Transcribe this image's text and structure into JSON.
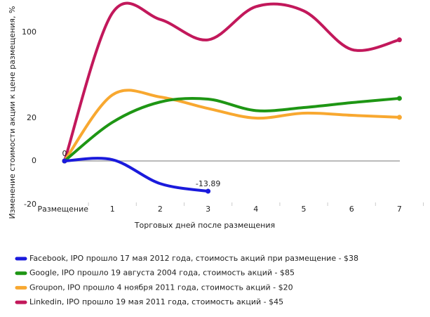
{
  "chart_data": {
    "type": "line",
    "y_label": "Изменение стоимости акции к цене размещения, %",
    "x_label": "Торговых дней после размещения",
    "categories": [
      "Размещение",
      "1",
      "2",
      "3",
      "4",
      "5",
      "6",
      "7"
    ],
    "ylim": [
      -20,
      130
    ],
    "yticks": [
      -20,
      0,
      20,
      100
    ],
    "series": [
      {
        "name": "Facebook, IPO прошло 17 мая 2012 года, стоимость акций при размещение - $38",
        "color": "#1a1adc",
        "values": [
          0,
          0.6,
          -10.4,
          -13.89,
          null,
          null,
          null,
          null
        ],
        "labeled_points": [
          0,
          3
        ]
      },
      {
        "name": "Google, IPO прошло 19 августа 2004 года, стоимость акций - $85",
        "color": "#1e9614",
        "values": [
          0,
          18,
          35,
          37.7,
          27,
          29.8,
          34.4,
          38.4
        ]
      },
      {
        "name": "Groupon, IPO прошло 4 ноября 2011 года, стоимость акций - $20",
        "color": "#f8a830",
        "values": [
          0,
          41.6,
          39.7,
          29,
          20,
          24.6,
          22.6,
          20.7
        ]
      },
      {
        "name": "Linkedin, IPO прошло 19 мая 2011 года, стоимость акций - $45",
        "color": "#c2185b",
        "values": [
          0,
          118,
          112,
          93,
          124,
          120,
          84,
          93
        ]
      }
    ]
  }
}
